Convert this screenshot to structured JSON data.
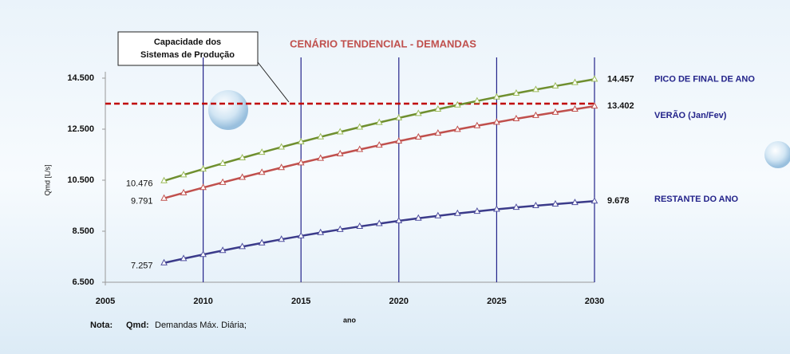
{
  "chart_data": {
    "type": "line",
    "title": "CENÁRIO TENDENCIAL - DEMANDAS",
    "x_label": "ano",
    "y_label": "Qmd [L/s]",
    "x": [
      2008,
      2009,
      2010,
      2011,
      2012,
      2013,
      2014,
      2015,
      2016,
      2017,
      2018,
      2019,
      2020,
      2021,
      2022,
      2023,
      2024,
      2025,
      2026,
      2027,
      2028,
      2029,
      2030
    ],
    "series": [
      {
        "name": "PICO DE FINAL DE ANO",
        "color": "#9bbb59",
        "stroke": "#6f8f2f",
        "values": [
          10476,
          10708,
          10935,
          11158,
          11375,
          11588,
          11796,
          12000,
          12197,
          12390,
          12578,
          12762,
          12940,
          13113,
          13281,
          13445,
          13604,
          13757,
          13907,
          14051,
          14190,
          14325,
          14457
        ],
        "value_labels": [
          "10.476",
          null,
          null,
          null,
          null,
          null,
          null,
          null,
          null,
          null,
          null,
          null,
          null,
          null,
          null,
          null,
          null,
          null,
          null,
          null,
          null,
          null,
          "14.457"
        ]
      },
      {
        "name": "VERÃO (Jan/Fev)",
        "color": "#c0504d",
        "stroke": "#c0504d",
        "values": [
          9791,
          10002,
          10210,
          10412,
          10610,
          10803,
          10992,
          11177,
          11357,
          11532,
          11703,
          11870,
          12031,
          12188,
          12341,
          12488,
          12632,
          12770,
          12905,
          13035,
          13161,
          13282,
          13402
        ],
        "value_labels": [
          "9.791",
          null,
          null,
          null,
          null,
          null,
          null,
          null,
          null,
          null,
          null,
          null,
          null,
          null,
          null,
          null,
          null,
          null,
          null,
          null,
          null,
          null,
          "13.402"
        ]
      },
      {
        "name": "RESTANTE DO ANO",
        "color": "#4f4f9f",
        "stroke": "#3b3b8a",
        "values": [
          7257,
          7425,
          7587,
          7743,
          7894,
          8040,
          8181,
          8315,
          8444,
          8568,
          8686,
          8798,
          8906,
          9007,
          9103,
          9194,
          9279,
          9358,
          9432,
          9500,
          9563,
          9620,
          9678
        ],
        "value_labels": [
          "7.257",
          null,
          null,
          null,
          null,
          null,
          null,
          null,
          null,
          null,
          null,
          null,
          null,
          null,
          null,
          null,
          null,
          null,
          null,
          null,
          null,
          null,
          "9.678"
        ]
      }
    ],
    "xlim": [
      2005,
      2030
    ],
    "xticks": [
      2005,
      2010,
      2015,
      2020,
      2025,
      2030
    ],
    "ylim": [
      6500,
      14500
    ],
    "yticks": [
      {
        "value": 6500,
        "label": "6.500"
      },
      {
        "value": 8500,
        "label": "8.500"
      },
      {
        "value": 10500,
        "label": "10.500"
      },
      {
        "value": 12500,
        "label": "12.500"
      },
      {
        "value": 14500,
        "label": "14.500"
      }
    ],
    "grid": true,
    "threshold": {
      "value": 13500,
      "color": "#c00000",
      "label_lines": [
        "Capacidade dos",
        "Sistemas de Produção"
      ]
    },
    "note": {
      "label": "Nota:",
      "term": "Qmd:",
      "text": "Demandas Máx. Diária;"
    }
  }
}
